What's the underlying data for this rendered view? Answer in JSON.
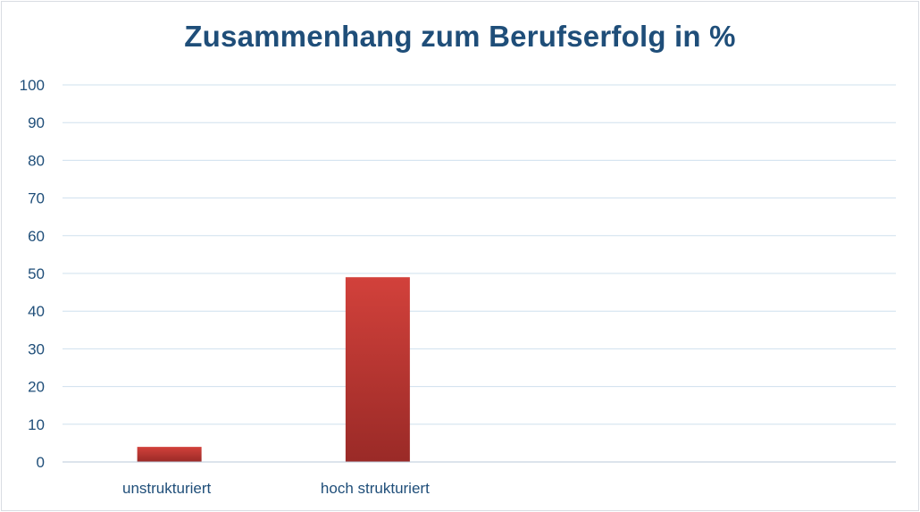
{
  "chart_data": {
    "type": "bar",
    "title": "Zusammenhang zum Berufserfolg in %",
    "categories": [
      "unstrukturiert",
      "hoch strukturiert"
    ],
    "slot_count": 4,
    "values": [
      4,
      49
    ],
    "ylim": [
      0,
      100
    ],
    "yticks": [
      0,
      10,
      20,
      30,
      40,
      50,
      60,
      70,
      80,
      90,
      100
    ],
    "grid": true,
    "legend": "none",
    "xlabel": "",
    "ylabel": "",
    "colors": {
      "bar_top": "#d2413b",
      "bar_bottom": "#9a2a27",
      "grid": "#cfe0ee",
      "axis": "#b9c9d8",
      "text": "#1f4e79"
    }
  }
}
